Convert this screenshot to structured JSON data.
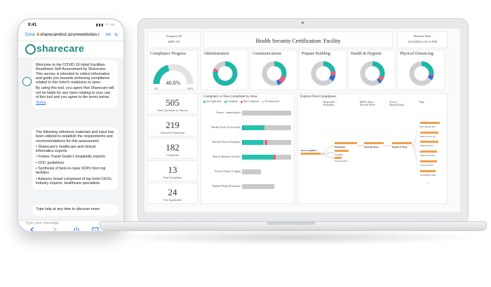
{
  "phone": {
    "time": "9:41",
    "signal": "▮▮▮ ◠ ▭",
    "done": "Done",
    "url": "sharecarebot.azurewebsites.r",
    "text_size": "AA",
    "brand": "sharecare",
    "brand_color": "#1f8a7f",
    "messages": [
      {
        "paragraphs": [
          "Welcome to the COVID-19 Hotel Facilities Readiness Self-Assessment by Sharecare. This service is intended to collect information and guide you towards achieving compliance related to this hotel's readiness to open.",
          "By using this tool, you agree that Sharecare will not be liable for any harm relating to your use of this tool and you agree to the terms below."
        ],
        "link": "Terms"
      },
      {
        "paragraphs": [
          "The following reference materials and input has been utilized to establish the requirements and recommendations for this assessment:",
          "• Sharecare's healthcare and clinical informatics experts",
          "• Forbes Travel Guide's hospitality experts",
          "• CDC guidelines",
          "• Synthesis of best-in-class SOPs from top facilities",
          "• Advisory board comprised of top hotel CEOs, industry experts, healthcare specialists."
        ]
      },
      {
        "text": "Type help at any time to discover more"
      }
    ],
    "input_placeholder": "Type your message",
    "nav_icons": [
      "back",
      "forward",
      "share",
      "bookmarks",
      "tabs"
    ]
  },
  "dashboard": {
    "property_label": "Property ID",
    "property_value": "2000-101",
    "title": "Health Security Certification: Facility",
    "refresh_label": "Refresh Date",
    "refresh_value": "10/2/2020 2:03:31 PM",
    "compliance": {
      "title": "Compliance Progress",
      "value_text": "40.8%",
      "value": 40.8,
      "min_label": "0%",
      "max_label": "100%",
      "color": "#1fb7a8"
    },
    "categories": [
      {
        "name": "Administration",
        "compliant": 0.78,
        "noncompliant": 0.04,
        "na": 0.0
      },
      {
        "name": "Communications",
        "compliant": 0.3,
        "noncompliant": 0.1,
        "na": 0.05
      },
      {
        "name": "Prepare Building",
        "compliant": 0.22,
        "noncompliant": 0.06,
        "na": 0.08
      },
      {
        "name": "Health & Hygiene",
        "compliant": 0.3,
        "noncompliant": 0.06,
        "na": 0.04
      },
      {
        "name": "Physical Distancing",
        "compliant": 0.26,
        "noncompliant": 0.02,
        "na": 0.06
      }
    ],
    "stats": [
      {
        "value": "505",
        "label": "Total Questions to Answer"
      },
      {
        "value": "219",
        "label": "Answered Questions"
      },
      {
        "value": "182",
        "label": "Compliant"
      },
      {
        "value": "13",
        "label": "Non-Compliant"
      },
      {
        "value": "24",
        "label": "Not Applicable"
      }
    ],
    "bar_chart": {
      "title": "Compliant vs Non-Compliant by Area",
      "legend": [
        {
          "name": "Not Applicable",
          "color": "#1fb7a8"
        },
        {
          "name": "Compliant",
          "color": "#27c2b0"
        },
        {
          "name": "Non-Compliant",
          "color": "#e8607a"
        },
        {
          "name": "Not Answered",
          "color": "#c9c9c9"
        }
      ],
      "rows": [
        {
          "label": "Owners · administration",
          "na": 0,
          "c": 0,
          "nc": 0,
          "rest": 1.0
        },
        {
          "label": "Amenity Pools, Pool and Spa",
          "na": 0.06,
          "c": 0.4,
          "nc": 0,
          "rest": 0.54
        },
        {
          "label": "Marcelle Becerr Hospitality",
          "na": 0.03,
          "c": 0.42,
          "nc": 0.06,
          "rest": 0.49
        },
        {
          "label": "Maison Marinette Facilities",
          "na": 0.02,
          "c": 0.62,
          "nc": 0.04,
          "rest": 0.32
        },
        {
          "label": "Patricia Orlando Lodging",
          "na": 0,
          "c": 0,
          "nc": 0,
          "rest": 0.38
        },
        {
          "label": "Raphael Berger Restaurants",
          "na": 0,
          "c": 0,
          "nc": 0,
          "rest": 0.66
        }
      ]
    },
    "explore": {
      "title": "Explore Non-Compliance",
      "headers": [
        {
          "title": "Responsibl...",
          "sub": "Hospitality"
        },
        {
          "title": "BME's Name",
          "sub": "Marcelle Becer"
        },
        {
          "title": "Section",
          "sub": "Health & Hyg..."
        },
        {
          "title": "Topic",
          "sub": ""
        }
      ],
      "root": "Non-Compliant ...",
      "level1": [
        "Hospitality",
        "Facilities",
        "Food and bev..."
      ],
      "level2": "Marcelle Becer",
      "level3": "Health & Hygi...",
      "topics": [
        "Discontinue ind...",
        "Follow CDC gu...",
        "Education for ...",
        "Stand each mor...",
        "Look all ill m...",
        "Procedures regu..."
      ]
    }
  }
}
